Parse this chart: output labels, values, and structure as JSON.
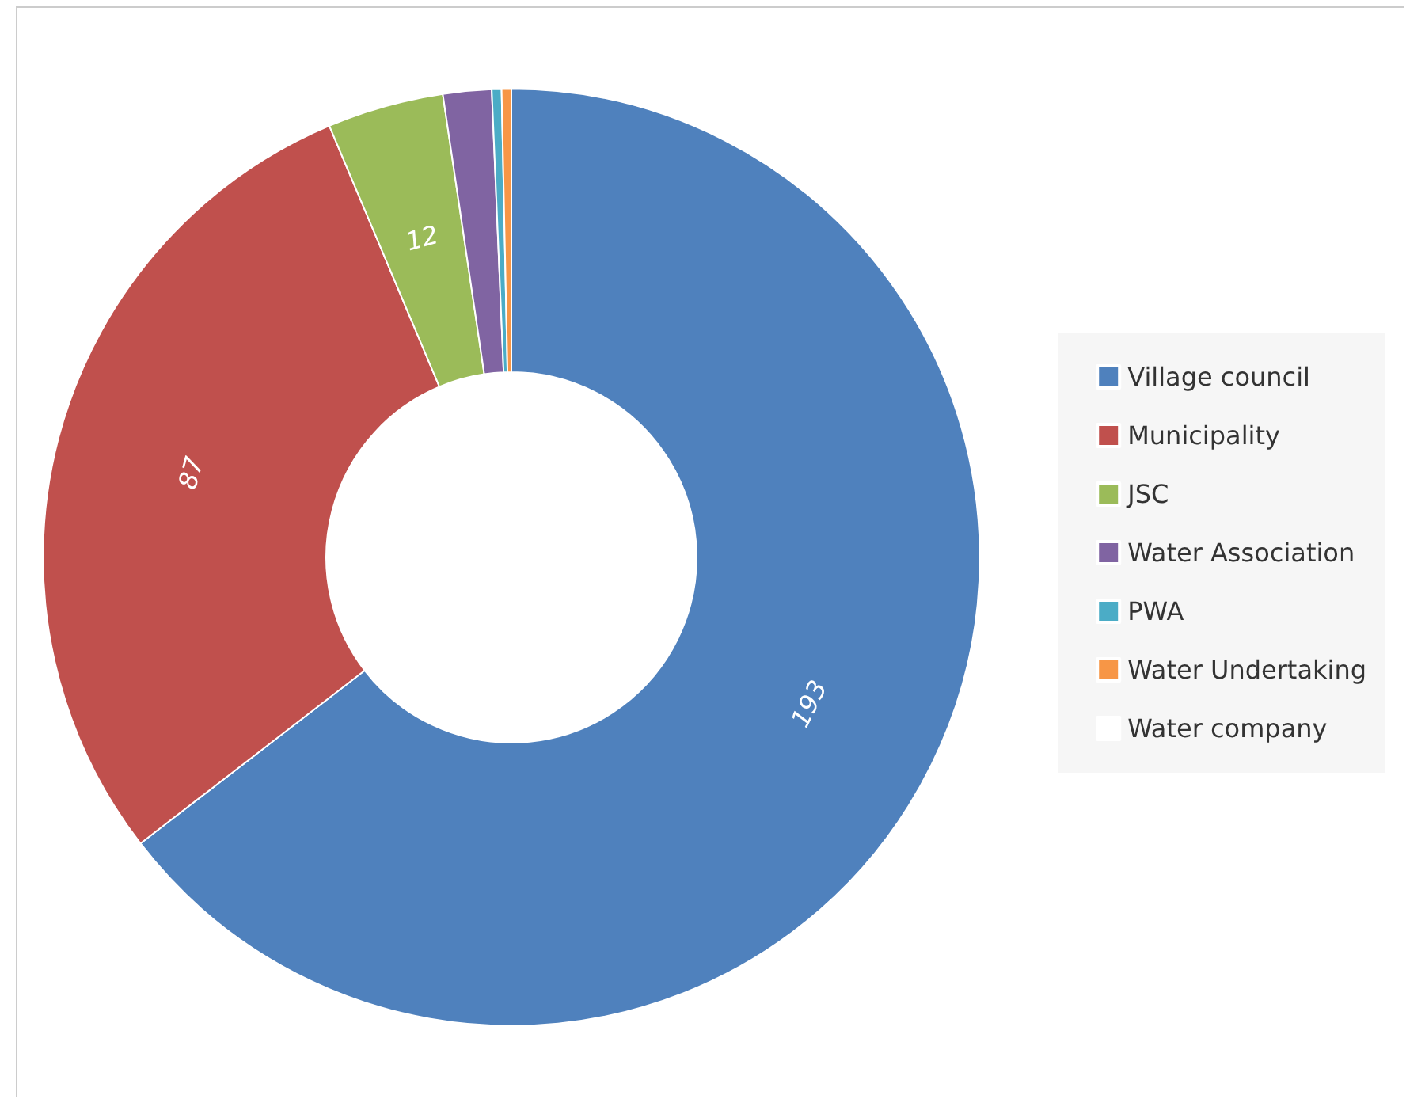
{
  "chart_data": {
    "type": "donut",
    "categories": [
      "Village council",
      "Municipality",
      "JSC",
      "Water Association",
      "PWA",
      "Water Undertaking",
      "Water company"
    ],
    "values": [
      193,
      87,
      12,
      5,
      1,
      1,
      0
    ],
    "colors": [
      "#4f81bd",
      "#c0504d",
      "#9bbb59",
      "#8064a2",
      "#4bacc6",
      "#f79646",
      "#ffffff"
    ],
    "value_labels": [
      "193",
      "87",
      "12",
      null,
      null,
      null,
      null
    ],
    "legend": "right"
  }
}
